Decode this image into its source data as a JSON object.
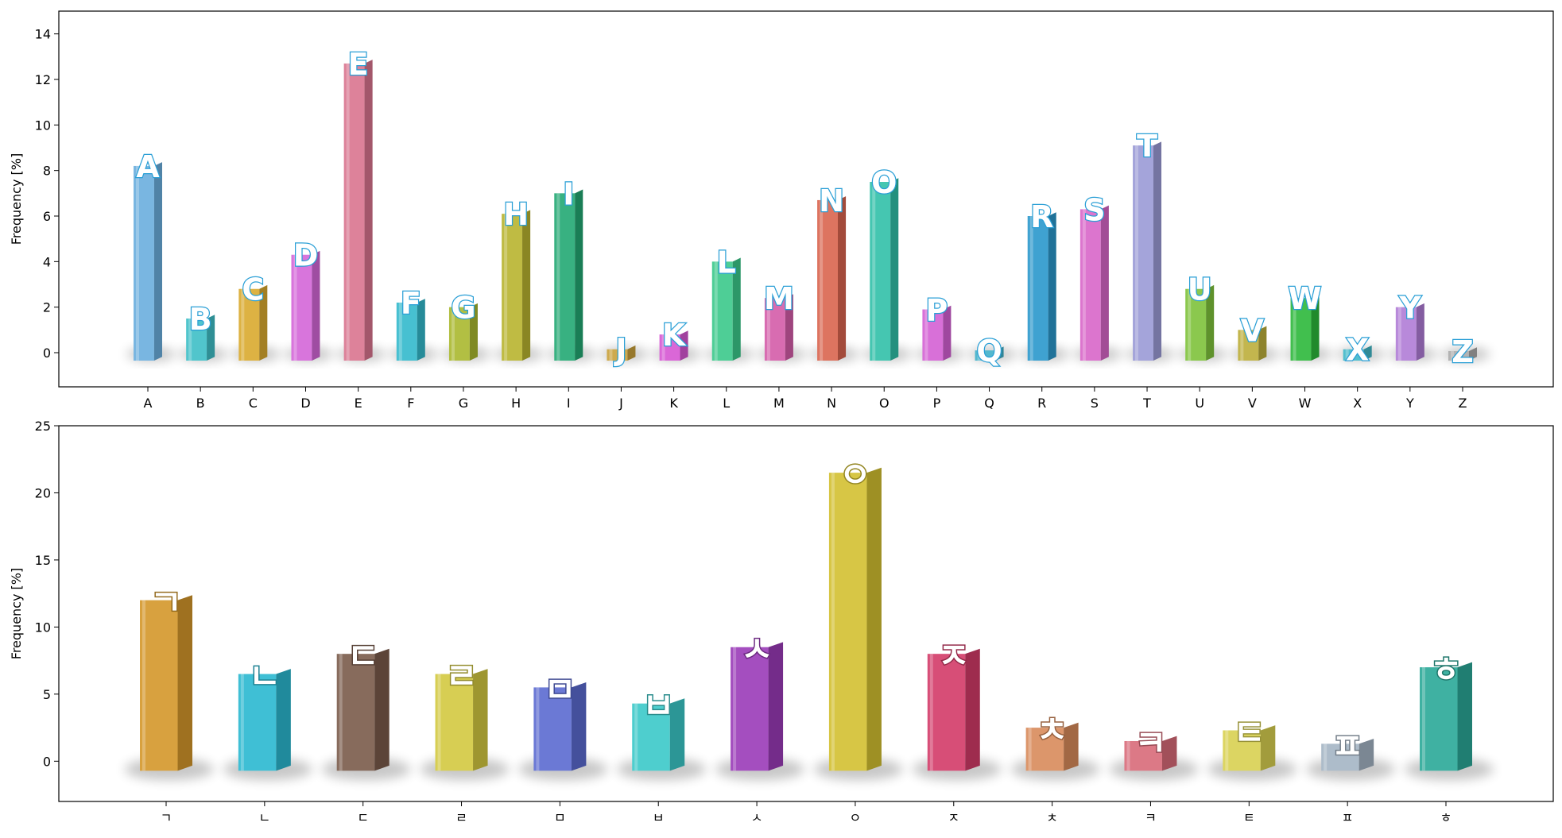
{
  "chart_data": [
    {
      "type": "bar",
      "ylabel": "Frequency [%]",
      "ylim": [
        -1.5,
        15
      ],
      "yticks": [
        0,
        2,
        4,
        6,
        8,
        10,
        12,
        14
      ],
      "categories": [
        "A",
        "B",
        "C",
        "D",
        "E",
        "F",
        "G",
        "H",
        "I",
        "J",
        "K",
        "L",
        "M",
        "N",
        "O",
        "P",
        "Q",
        "R",
        "S",
        "T",
        "U",
        "V",
        "W",
        "X",
        "Y",
        "Z"
      ],
      "values": [
        8.2,
        1.5,
        2.8,
        4.3,
        12.7,
        2.2,
        2.0,
        6.1,
        7.0,
        0.15,
        0.8,
        4.0,
        2.4,
        6.7,
        7.5,
        1.9,
        0.1,
        6.0,
        6.3,
        9.1,
        2.8,
        1.0,
        2.4,
        0.15,
        2.0,
        0.07
      ],
      "colors": [
        "#6aaede",
        "#3ebfc6",
        "#d9a92e",
        "#d466d8",
        "#d9748f",
        "#33b9cc",
        "#a9b82e",
        "#b8b32e",
        "#22a873",
        "#c9a03a",
        "#d656d2",
        "#3ac98a",
        "#d45ca8",
        "#d9644e",
        "#30c0a8",
        "#d460d4",
        "#40b0c8",
        "#2a98cc",
        "#d866c8",
        "#9a9ad6",
        "#7ec23a",
        "#bcae3a",
        "#2cb83a",
        "#40b8c8",
        "#b07cd6",
        "#aaaaaa"
      ]
    },
    {
      "type": "bar",
      "ylabel": "Frequency [%]",
      "ylim": [
        -3,
        25
      ],
      "yticks": [
        0,
        5,
        10,
        15,
        20,
        25
      ],
      "categories": [
        "ㄱ",
        "ㄴ",
        "ㄷ",
        "ㄹ",
        "ㅁ",
        "ㅂ",
        "ㅅ",
        "ㅇ",
        "ㅈ",
        "ㅊ",
        "ㅋ",
        "ㅌ",
        "ㅍ",
        "ㅎ"
      ],
      "values": [
        12.0,
        6.5,
        8.0,
        6.5,
        5.5,
        4.3,
        8.5,
        21.5,
        8.0,
        2.5,
        1.5,
        2.3,
        1.3,
        7.0
      ],
      "colors": [
        "#d4972a",
        "#2ab8d0",
        "#7a5a4a",
        "#d2c840",
        "#5a6ad0",
        "#3ac8c8",
        "#9a3ab8",
        "#d2c030",
        "#d23a68",
        "#d88a5a",
        "#d86a78",
        "#d8d050",
        "#a4b4c4",
        "#2aa898"
      ]
    }
  ]
}
